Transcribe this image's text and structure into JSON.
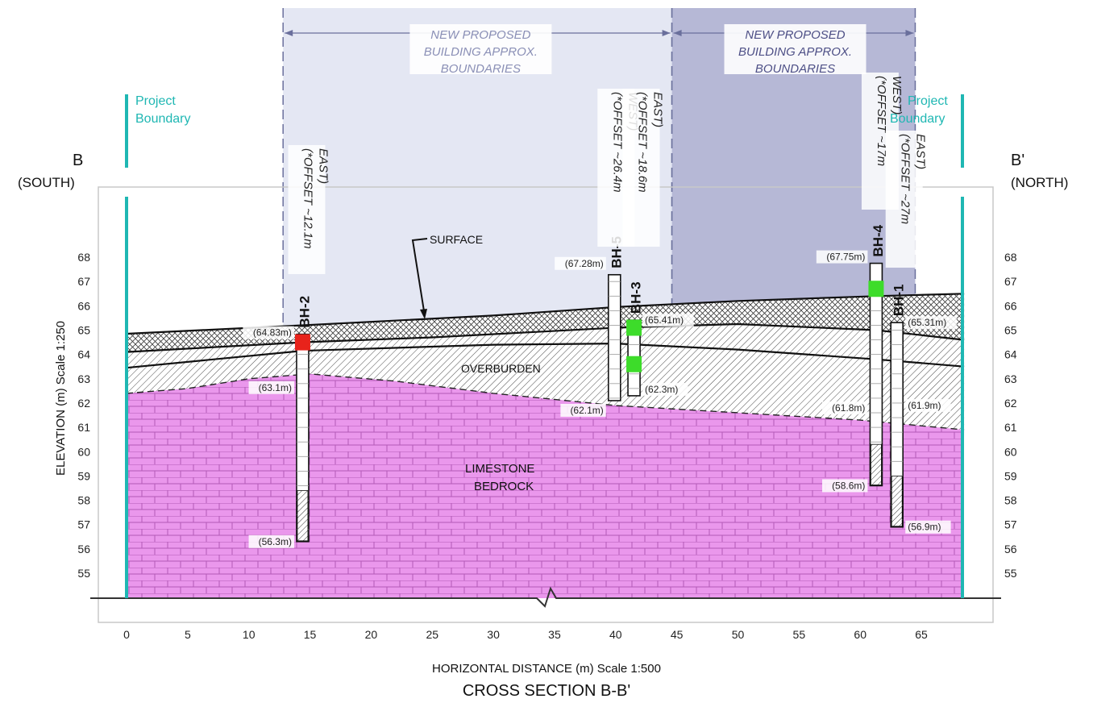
{
  "title": "CROSS SECTION B-B'",
  "x_axis": {
    "label": "HORIZONTAL DISTANCE (m) Scale 1:500",
    "ticks": [
      "0",
      "5",
      "10",
      "15",
      "20",
      "25",
      "30",
      "35",
      "40",
      "45",
      "50",
      "55",
      "60",
      "65"
    ]
  },
  "y_axis": {
    "label": "ELEVATION (m) Scale 1:250",
    "ticks": [
      "55",
      "56",
      "57",
      "58",
      "59",
      "60",
      "61",
      "62",
      "63",
      "64",
      "65",
      "66",
      "67",
      "68"
    ]
  },
  "ends": {
    "left": {
      "letter": "B",
      "dir": "(SOUTH)"
    },
    "right": {
      "letter": "B'",
      "dir": "(NORTH)"
    }
  },
  "project_boundary": {
    "line1": "Project",
    "line2": "Boundary"
  },
  "buildings": [
    {
      "lines": [
        "NEW PROPOSED",
        "BUILDING APPROX.",
        "BOUNDARIES"
      ],
      "x_range_m": [
        12.8,
        44.6
      ],
      "fill": "#e4e7f3",
      "text_color": "#8a8fb6"
    },
    {
      "lines": [
        "NEW PROPOSED",
        "BUILDING APPROX.",
        "BOUNDARIES"
      ],
      "x_range_m": [
        44.6,
        64.5
      ],
      "fill": "#b6b8d6",
      "text_color": "#4d4f86"
    }
  ],
  "labels": {
    "surface": "SURFACE",
    "overburden": "OVERBURDEN",
    "limestone_line1": "LIMESTONE",
    "limestone_line2": "BEDROCK"
  },
  "boreholes": [
    {
      "id": "BH-2",
      "x_m": 14.4,
      "top": 64.83,
      "bedrock": 63.1,
      "bottom": 56.3,
      "hatch_from": 58.4,
      "offset_lines": [
        "(*OFFSET ~12.1m",
        "EAST)"
      ],
      "top_label": "(64.83m)",
      "bedrock_label": "(63.1m)",
      "bottom_label": "(56.3m)",
      "markers": [
        {
          "elev": 64.5,
          "color": "#e8231b"
        }
      ]
    },
    {
      "id": "BH-5",
      "x_m": 39.9,
      "top": 67.28,
      "bedrock": 62.1,
      "bottom": 62.1,
      "hatch_from": null,
      "offset_lines": [
        "(*OFFSET ~26.4m",
        "WEST)"
      ],
      "top_label": "(67.28m)",
      "bedrock_label": "(62.1m)",
      "bottom_label": "",
      "markers": []
    },
    {
      "id": "BH-3",
      "x_m": 41.5,
      "top": 65.41,
      "bedrock": 62.3,
      "bottom": 62.3,
      "hatch_from": null,
      "offset_lines": [
        "(*OFFSET ~18.6m",
        "EAST)"
      ],
      "top_label": "(65.41m)",
      "bedrock_label": "(62.3m)",
      "bottom_label": "",
      "markers": [
        {
          "elev": 65.1,
          "color": "#3ddc2a"
        },
        {
          "elev": 63.6,
          "color": "#3ddc2a"
        }
      ]
    },
    {
      "id": "BH-4",
      "x_m": 61.3,
      "top": 67.75,
      "bedrock": 61.8,
      "bottom": 58.6,
      "hatch_from": 60.3,
      "offset_lines": [
        "(*OFFSET ~17m",
        "WEST)"
      ],
      "top_label": "(67.75m)",
      "bedrock_label": "(61.8m)",
      "bottom_label": "(58.6m)",
      "markers": [
        {
          "elev": 66.7,
          "color": "#3ddc2a"
        }
      ]
    },
    {
      "id": "BH-1",
      "x_m": 63.0,
      "top": 65.31,
      "bedrock": 61.9,
      "bottom": 56.9,
      "hatch_from": 59.0,
      "offset_lines": [
        "(*OFFSET ~27m",
        "EAST)"
      ],
      "top_label": "(65.31m)",
      "bedrock_label": "(61.9m)",
      "bottom_label": "(56.9m)",
      "markers": []
    }
  ],
  "profiles": {
    "surface": [
      [
        0,
        64.85
      ],
      [
        14.4,
        65.2
      ],
      [
        30,
        65.6
      ],
      [
        40,
        65.95
      ],
      [
        50,
        66.2
      ],
      [
        61.3,
        66.4
      ],
      [
        68.5,
        66.5
      ]
    ],
    "layer2": [
      [
        0,
        64.1
      ],
      [
        14.4,
        64.5
      ],
      [
        25,
        64.7
      ],
      [
        40,
        65.1
      ],
      [
        50,
        65.25
      ],
      [
        61.3,
        65.0
      ],
      [
        68.5,
        64.6
      ]
    ],
    "layer3": [
      [
        0,
        63.45
      ],
      [
        14.4,
        64.15
      ],
      [
        30,
        64.4
      ],
      [
        40,
        64.45
      ],
      [
        50,
        64.2
      ],
      [
        61.3,
        63.8
      ],
      [
        68.5,
        63.5
      ]
    ],
    "bedrock": [
      [
        0,
        62.4
      ],
      [
        5,
        62.6
      ],
      [
        10,
        63.0
      ],
      [
        15,
        63.2
      ],
      [
        22,
        62.9
      ],
      [
        30,
        62.4
      ],
      [
        40,
        61.9
      ],
      [
        50,
        61.6
      ],
      [
        60,
        61.3
      ],
      [
        68.5,
        60.9
      ]
    ]
  },
  "colors": {
    "bedrock_fill": "#ea97ec",
    "bedrock_line": "#b35ab6",
    "boundary": "#1fb7b3",
    "axis": "#333333"
  }
}
